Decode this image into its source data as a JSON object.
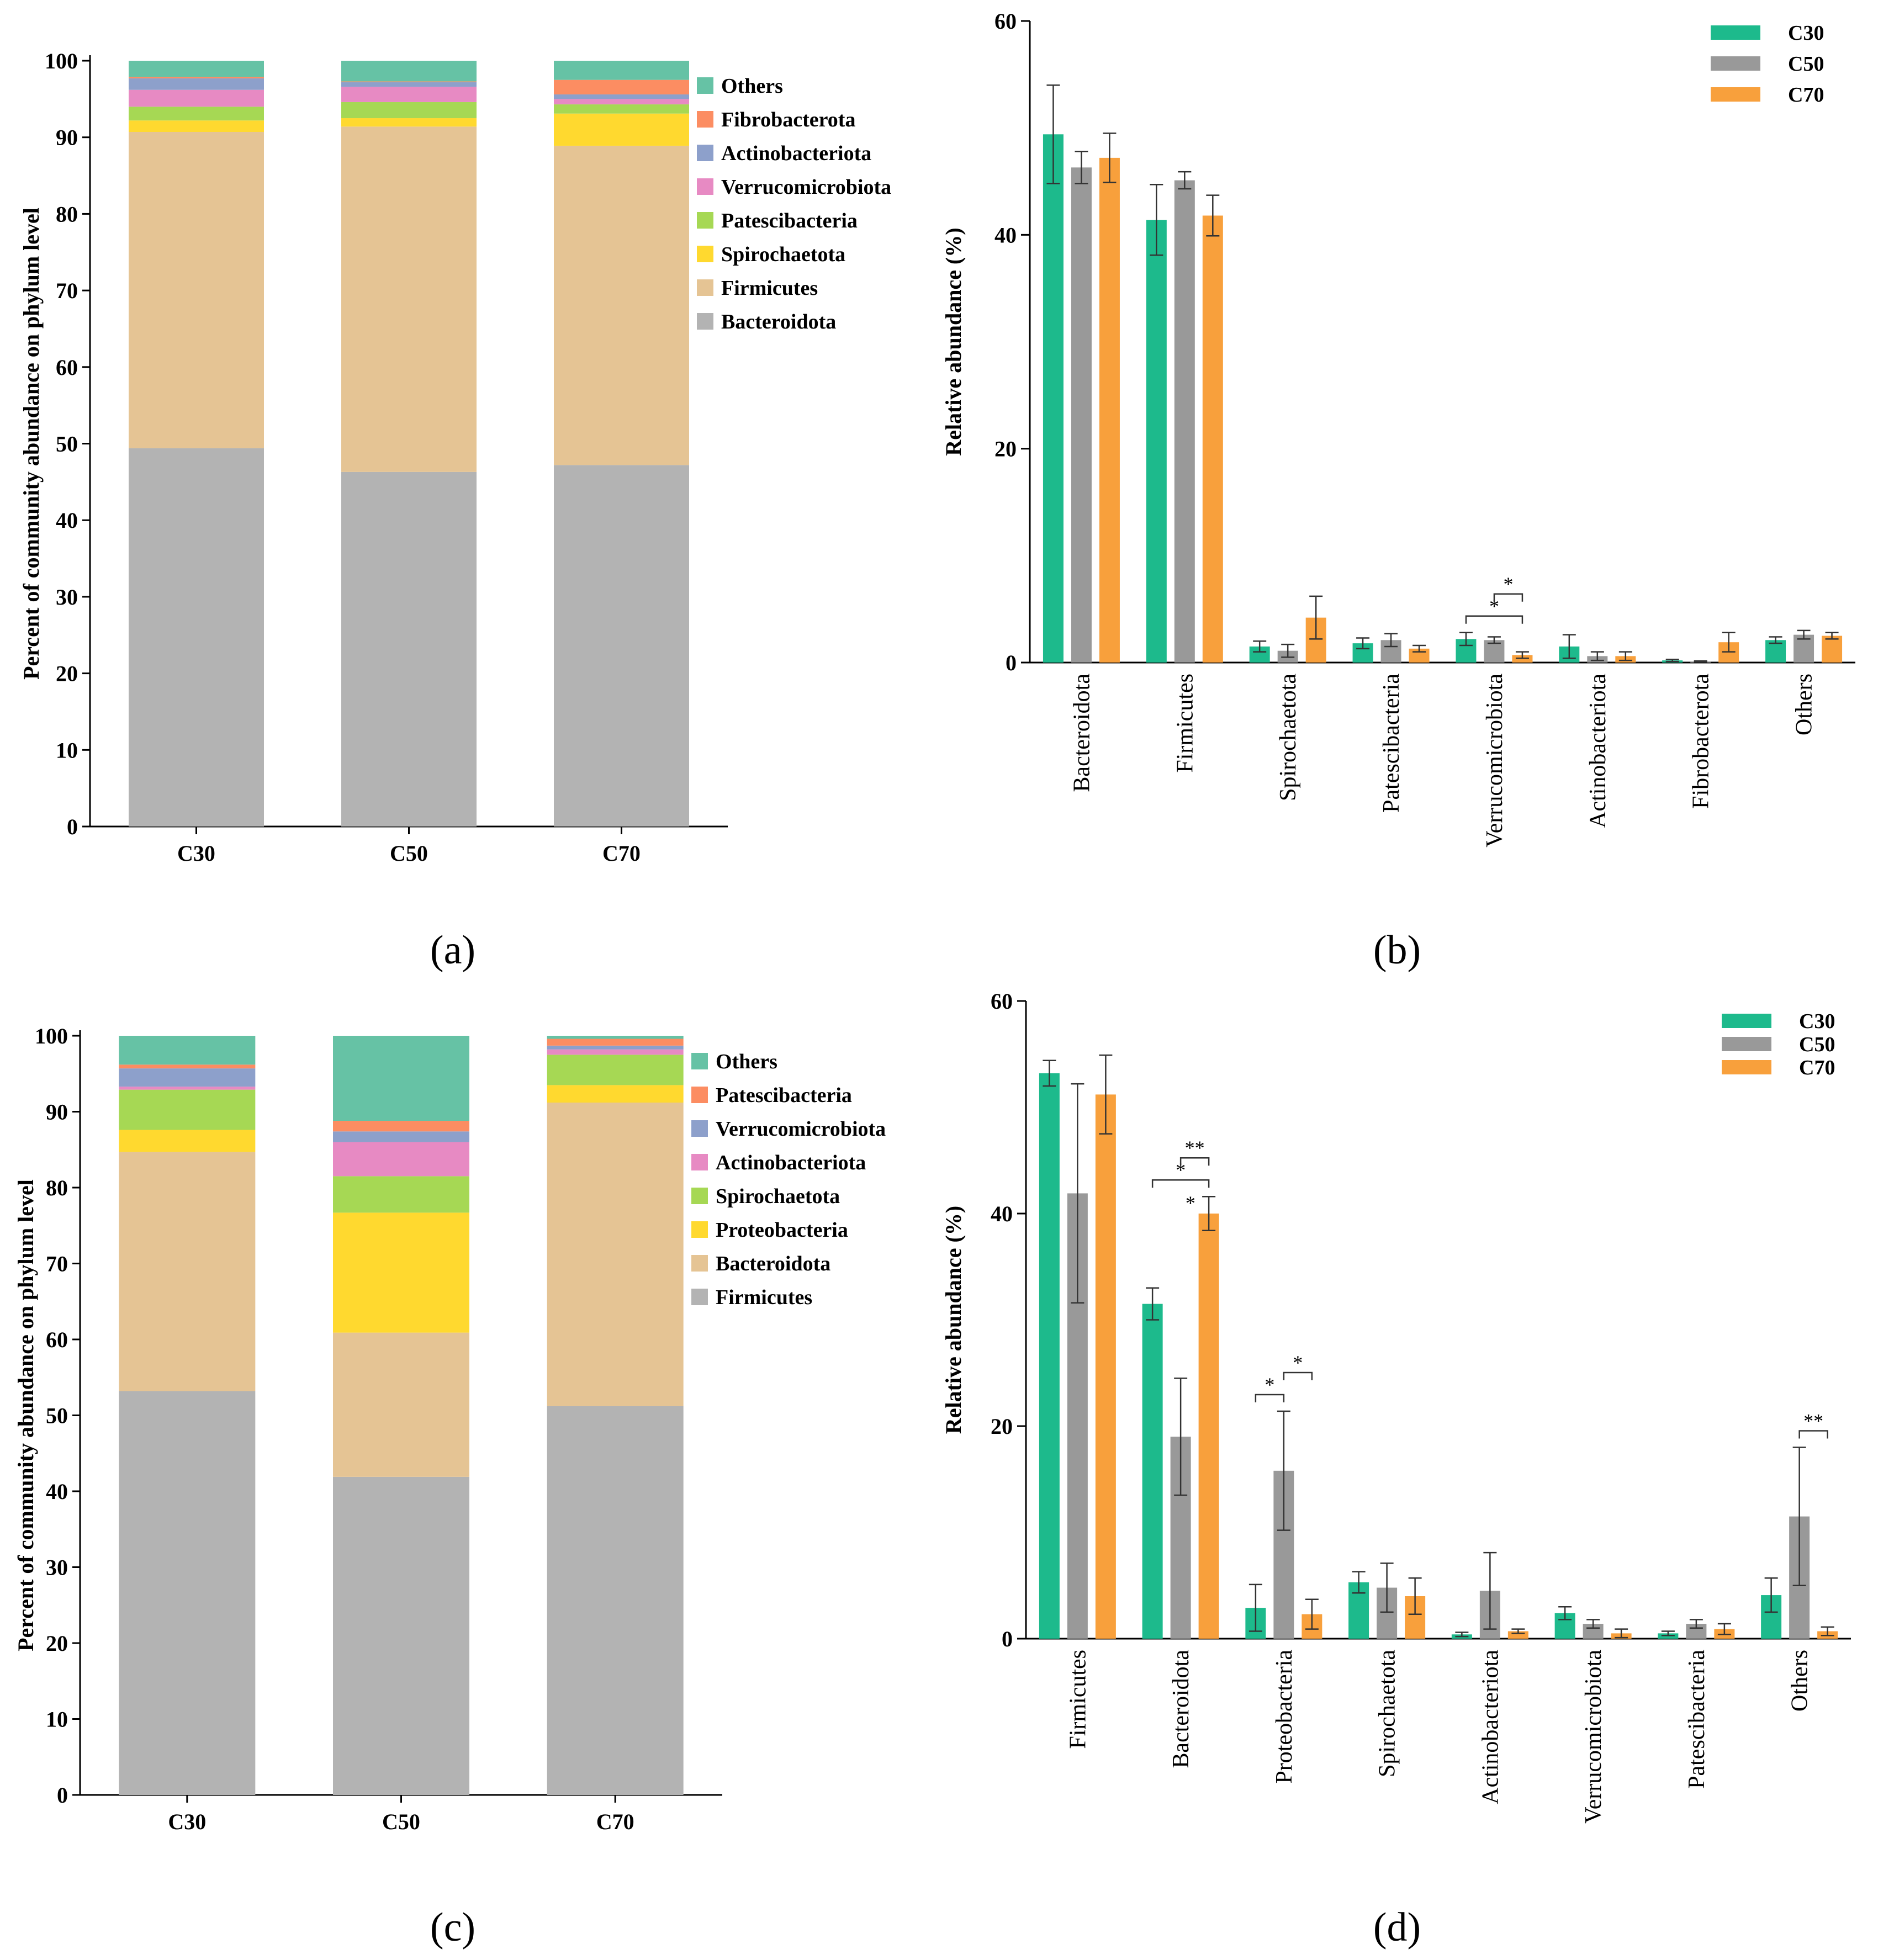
{
  "chart_data": [
    {
      "panel": "(a)",
      "type": "bar",
      "stacked": true,
      "categories": [
        "C30",
        "C50",
        "C70"
      ],
      "ylabel": "Percent of community abundance on phylum level",
      "ylim": [
        0,
        100
      ],
      "yticks": [
        "0",
        "10",
        "20",
        "30",
        "40",
        "50",
        "60",
        "70",
        "80",
        "90",
        "100"
      ],
      "legend": [
        "Others",
        "Fibrobacterota",
        "Actinobacteriota",
        "Verrucomicrobiota",
        "Patescibacteria",
        "Spirochaetota",
        "Firmicutes",
        "Bacteroidota"
      ],
      "legend_position": "right",
      "series": [
        {
          "name": "Bacteroidota",
          "color": "#b3b3b3",
          "values": [
            49.4,
            46.3,
            47.2
          ]
        },
        {
          "name": "Firmicutes",
          "color": "#e5c494",
          "values": [
            41.3,
            45.1,
            41.7
          ]
        },
        {
          "name": "Spirochaetota",
          "color": "#ffd92f",
          "values": [
            1.5,
            1.1,
            4.2
          ]
        },
        {
          "name": "Patescibacteria",
          "color": "#a6d854",
          "values": [
            1.8,
            2.1,
            1.2
          ]
        },
        {
          "name": "Verrucomicrobiota",
          "color": "#e78ac3",
          "values": [
            2.2,
            2.0,
            0.7
          ]
        },
        {
          "name": "Actinobacteriota",
          "color": "#8da0cb",
          "values": [
            1.5,
            0.6,
            0.6
          ]
        },
        {
          "name": "Fibrobacterota",
          "color": "#fc8d62",
          "values": [
            0.2,
            0.1,
            1.9
          ]
        },
        {
          "name": "Others",
          "color": "#66c2a5",
          "values": [
            2.1,
            2.7,
            2.5
          ]
        }
      ]
    },
    {
      "panel": "(b)",
      "type": "bar",
      "categories": [
        "Bacteroidota",
        "Firmicutes",
        "Spirochaetota",
        "Patescibacteria",
        "Verrucomicrobiota",
        "Actinobacteriota",
        "Fibrobacterota",
        "Others"
      ],
      "ylabel": "Relative abundance  (%)",
      "ylim": [
        0,
        60
      ],
      "yticks": [
        "0",
        "20",
        "40",
        "60"
      ],
      "legend_position": "top-right",
      "series": [
        {
          "name": "C30",
          "color": "#1dba8c",
          "values": [
            49.4,
            41.4,
            1.5,
            1.8,
            2.2,
            1.5,
            0.2,
            2.1
          ],
          "errors": [
            4.6,
            3.3,
            0.5,
            0.5,
            0.6,
            1.1,
            0.1,
            0.3
          ]
        },
        {
          "name": "C50",
          "color": "#999999",
          "values": [
            46.3,
            45.1,
            1.1,
            2.1,
            2.1,
            0.6,
            0.1,
            2.6
          ],
          "errors": [
            1.5,
            0.8,
            0.6,
            0.6,
            0.3,
            0.4,
            0.05,
            0.4
          ]
        },
        {
          "name": "C70",
          "color": "#f8a03c",
          "values": [
            47.2,
            41.8,
            4.2,
            1.3,
            0.7,
            0.6,
            1.9,
            2.5
          ],
          "errors": [
            2.3,
            1.9,
            2.0,
            0.3,
            0.3,
            0.4,
            0.9,
            0.3
          ]
        }
      ],
      "significance": [
        {
          "category": "Verrucomicrobiota",
          "from": "C30",
          "to": "C70",
          "label": "*"
        },
        {
          "category": "Verrucomicrobiota",
          "from": "C50",
          "to": "C70",
          "label": "*"
        }
      ]
    },
    {
      "panel": "(c)",
      "type": "bar",
      "stacked": true,
      "categories": [
        "C30",
        "C50",
        "C70"
      ],
      "ylabel": "Percent of community abundance on phylum level",
      "ylim": [
        0,
        100
      ],
      "yticks": [
        "0",
        "10",
        "20",
        "30",
        "40",
        "50",
        "60",
        "70",
        "80",
        "90",
        "100"
      ],
      "legend": [
        "Others",
        "Patescibacteria",
        "Verrucomicrobiota",
        "Actinobacteriota",
        "Spirochaetota",
        "Proteobacteria",
        "Bacteroidota",
        "Firmicutes"
      ],
      "legend_position": "right",
      "series": [
        {
          "name": "Firmicutes",
          "color": "#b3b3b3",
          "values": [
            53.2,
            41.9,
            51.2
          ]
        },
        {
          "name": "Bacteroidota",
          "color": "#e5c494",
          "values": [
            31.5,
            19.0,
            40.0
          ]
        },
        {
          "name": "Proteobacteria",
          "color": "#ffd92f",
          "values": [
            2.9,
            15.8,
            2.3
          ]
        },
        {
          "name": "Spirochaetota",
          "color": "#a6d854",
          "values": [
            5.3,
            4.8,
            4.0
          ]
        },
        {
          "name": "Actinobacteriota",
          "color": "#e78ac3",
          "values": [
            0.4,
            4.5,
            0.7
          ]
        },
        {
          "name": "Verrucomicrobiota",
          "color": "#8da0cb",
          "values": [
            2.4,
            1.4,
            0.5
          ]
        },
        {
          "name": "Patescibacteria",
          "color": "#fc8d62",
          "values": [
            0.5,
            1.4,
            0.9
          ]
        },
        {
          "name": "Others",
          "color": "#66c2a5",
          "values": [
            3.8,
            11.2,
            0.4
          ]
        }
      ]
    },
    {
      "panel": "(d)",
      "type": "bar",
      "categories": [
        "Firmicutes",
        "Bacteroidota",
        "Proteobacteria",
        "Spirochaetota",
        "Actinobacteriota",
        "Verrucomicrobiota",
        "Patescibacteria",
        "Others"
      ],
      "ylabel": "Relative abundance (%)",
      "ylim": [
        0,
        60
      ],
      "yticks": [
        "0",
        "20",
        "40",
        "60"
      ],
      "legend_position": "top-right",
      "series": [
        {
          "name": "C30",
          "color": "#1dba8c",
          "values": [
            53.2,
            31.5,
            2.9,
            5.3,
            0.4,
            2.4,
            0.5,
            4.1
          ],
          "errors": [
            1.2,
            1.5,
            2.2,
            1.0,
            0.2,
            0.6,
            0.2,
            1.6
          ]
        },
        {
          "name": "C50",
          "color": "#999999",
          "values": [
            41.9,
            19.0,
            15.8,
            4.8,
            4.5,
            1.4,
            1.4,
            11.5
          ],
          "errors": [
            10.3,
            5.5,
            5.6,
            2.3,
            3.6,
            0.4,
            0.4,
            6.5
          ]
        },
        {
          "name": "C70",
          "color": "#f8a03c",
          "values": [
            51.2,
            40.0,
            2.3,
            4.0,
            0.7,
            0.5,
            0.9,
            0.7
          ],
          "errors": [
            3.7,
            1.6,
            1.4,
            1.7,
            0.2,
            0.4,
            0.5,
            0.4
          ]
        }
      ],
      "significance": [
        {
          "category": "Bacteroidota",
          "from": "C30",
          "to": "C70",
          "label": "*"
        },
        {
          "category": "Bacteroidota",
          "from": "C50",
          "to": "C70",
          "label": "**"
        },
        {
          "category": "Bacteroidota",
          "bar": "C70",
          "label": "*"
        },
        {
          "category": "Proteobacteria",
          "from": "C30",
          "to": "C50",
          "label": "*"
        },
        {
          "category": "Proteobacteria",
          "from": "C50",
          "to": "C70",
          "label": "*"
        },
        {
          "category": "Others",
          "from": "C50",
          "to": "C70",
          "label": "**"
        }
      ]
    }
  ]
}
